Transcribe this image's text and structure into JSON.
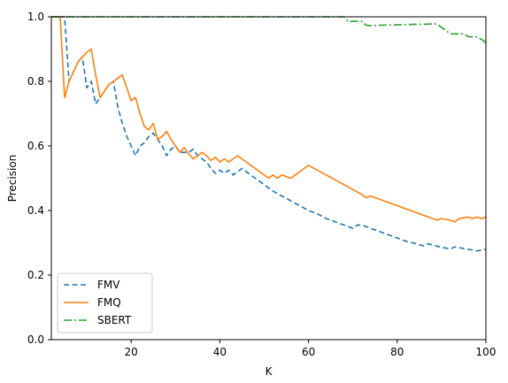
{
  "chart_data": {
    "type": "line",
    "xlabel": "K",
    "ylabel": "Precision",
    "xlim": [
      2,
      100
    ],
    "ylim": [
      0.0,
      1.0
    ],
    "xticks": [
      20,
      40,
      60,
      80,
      100
    ],
    "yticks": [
      0.0,
      0.2,
      0.4,
      0.6,
      0.8,
      1.0
    ],
    "ytick_labels": [
      "0.0",
      "0.2",
      "0.4",
      "0.6",
      "0.8",
      "1.0"
    ],
    "grid": false,
    "legend_position": "lower-left",
    "series": [
      {
        "name": "FMV",
        "color": "#1f77b4",
        "linestyle": "dashed",
        "x": [
          2,
          3,
          4,
          5,
          6,
          7,
          8,
          9,
          10,
          11,
          12,
          13,
          14,
          15,
          16,
          17,
          18,
          19,
          20,
          21,
          22,
          23,
          24,
          25,
          26,
          27,
          28,
          29,
          30,
          31,
          32,
          33,
          34,
          35,
          36,
          37,
          38,
          39,
          40,
          41,
          42,
          43,
          44,
          45,
          46,
          48,
          50,
          52,
          54,
          56,
          58,
          60,
          62,
          64,
          66,
          68,
          70,
          71,
          72,
          74,
          76,
          78,
          80,
          82,
          84,
          86,
          87,
          88,
          90,
          92,
          93,
          94,
          96,
          98,
          100
        ],
        "values": [
          1.0,
          1.0,
          1.0,
          1.0,
          0.8,
          0.83,
          0.86,
          0.875,
          0.78,
          0.8,
          0.73,
          0.75,
          0.77,
          0.79,
          0.8,
          0.72,
          0.67,
          0.63,
          0.6,
          0.57,
          0.6,
          0.61,
          0.63,
          0.64,
          0.62,
          0.6,
          0.57,
          0.59,
          0.6,
          0.58,
          0.58,
          0.58,
          0.59,
          0.57,
          0.56,
          0.55,
          0.53,
          0.515,
          0.525,
          0.515,
          0.525,
          0.51,
          0.52,
          0.53,
          0.52,
          0.5,
          0.48,
          0.46,
          0.445,
          0.43,
          0.415,
          0.4,
          0.39,
          0.375,
          0.365,
          0.355,
          0.345,
          0.355,
          0.355,
          0.345,
          0.335,
          0.325,
          0.315,
          0.305,
          0.298,
          0.29,
          0.297,
          0.293,
          0.286,
          0.281,
          0.287,
          0.285,
          0.28,
          0.275,
          0.28
        ]
      },
      {
        "name": "FMQ",
        "color": "#ff7f0e",
        "linestyle": "solid",
        "x": [
          2,
          3,
          4,
          5,
          6,
          7,
          8,
          9,
          10,
          11,
          12,
          13,
          14,
          15,
          16,
          17,
          18,
          19,
          20,
          21,
          22,
          23,
          24,
          25,
          26,
          27,
          28,
          29,
          30,
          31,
          32,
          33,
          34,
          35,
          36,
          37,
          38,
          39,
          40,
          41,
          42,
          43,
          44,
          45,
          46,
          48,
          50,
          51,
          52,
          53,
          54,
          56,
          58,
          59,
          60,
          62,
          64,
          66,
          68,
          70,
          72,
          73,
          74,
          76,
          78,
          80,
          82,
          84,
          86,
          88,
          89,
          90,
          92,
          93,
          94,
          96,
          97,
          98,
          99,
          100
        ],
        "values": [
          1.0,
          1.0,
          1.0,
          0.75,
          0.8,
          0.83,
          0.86,
          0.875,
          0.89,
          0.9,
          0.82,
          0.75,
          0.77,
          0.79,
          0.8,
          0.81,
          0.82,
          0.78,
          0.74,
          0.75,
          0.7,
          0.66,
          0.65,
          0.67,
          0.62,
          0.63,
          0.645,
          0.62,
          0.6,
          0.58,
          0.595,
          0.575,
          0.56,
          0.57,
          0.58,
          0.57,
          0.555,
          0.565,
          0.55,
          0.56,
          0.55,
          0.56,
          0.57,
          0.56,
          0.55,
          0.53,
          0.51,
          0.5,
          0.51,
          0.5,
          0.51,
          0.5,
          0.52,
          0.53,
          0.54,
          0.525,
          0.51,
          0.495,
          0.48,
          0.465,
          0.45,
          0.44,
          0.445,
          0.435,
          0.425,
          0.415,
          0.405,
          0.395,
          0.385,
          0.375,
          0.37,
          0.375,
          0.37,
          0.365,
          0.375,
          0.38,
          0.375,
          0.38,
          0.375,
          0.38
        ]
      },
      {
        "name": "SBERT",
        "color": "#2ca02c",
        "linestyle": "dashdot",
        "x": [
          2,
          10,
          20,
          30,
          40,
          50,
          60,
          65,
          66,
          67,
          68,
          69,
          70,
          71,
          72,
          73,
          74,
          76,
          80,
          82,
          84,
          86,
          88,
          89,
          90,
          91,
          92,
          93,
          94,
          95,
          96,
          97,
          98,
          99,
          100
        ],
        "values": [
          1.0,
          1.0,
          1.0,
          1.0,
          1.0,
          1.0,
          1.0,
          1.0,
          1.0,
          1.0,
          1.0,
          0.985,
          0.986,
          0.986,
          0.986,
          0.974,
          0.973,
          0.974,
          0.975,
          0.976,
          0.977,
          0.977,
          0.978,
          0.978,
          0.967,
          0.957,
          0.947,
          0.947,
          0.947,
          0.947,
          0.938,
          0.938,
          0.938,
          0.93,
          0.92
        ]
      }
    ]
  }
}
